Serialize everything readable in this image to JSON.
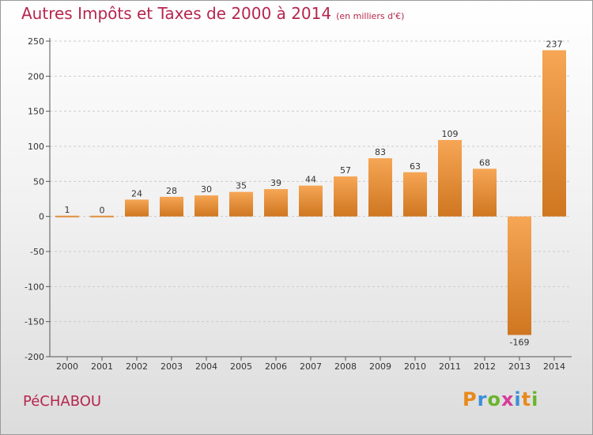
{
  "header": {
    "title": "Autres Impôts et Taxes de 2000 à 2014",
    "unit_note": "(en milliers d'€)"
  },
  "footer": {
    "commune": "PéCHABOU",
    "logo_text": "Proxiti",
    "logo_colors": [
      "#e8891c",
      "#3b8fd6",
      "#6ab42c",
      "#d63b9a",
      "#3b8fd6",
      "#e8891c",
      "#6ab42c"
    ]
  },
  "colors": {
    "bar_light": "#f6a655",
    "bar_dark": "#cf7620",
    "axis": "#555555",
    "grid": "#cccccc",
    "title": "#b5264e"
  },
  "chart_data": {
    "type": "bar",
    "title": "Autres Impôts et Taxes de 2000 à 2014",
    "subtitle": "(en milliers d'€)",
    "xlabel": "",
    "ylabel": "",
    "categories": [
      "2000",
      "2001",
      "2002",
      "2003",
      "2004",
      "2005",
      "2006",
      "2007",
      "2008",
      "2009",
      "2010",
      "2011",
      "2012",
      "2013",
      "2014"
    ],
    "values": [
      1,
      0,
      24,
      28,
      30,
      35,
      39,
      44,
      57,
      83,
      63,
      109,
      68,
      -169,
      237
    ],
    "value_labels": [
      "1",
      "0",
      "24",
      "28",
      "30",
      "35",
      "39",
      "44",
      "57",
      "83",
      "63",
      "109",
      "68",
      "-169",
      "237"
    ],
    "ylim": [
      -200,
      250
    ],
    "yticks": [
      -200,
      -150,
      -100,
      -50,
      0,
      50,
      100,
      150,
      200,
      250
    ],
    "ytick_labels": [
      "-200",
      "-150",
      "-100",
      "-50",
      "0",
      "50",
      "100",
      "150",
      "200",
      "250"
    ],
    "grid": "horizontal dashed",
    "legend": "none"
  }
}
